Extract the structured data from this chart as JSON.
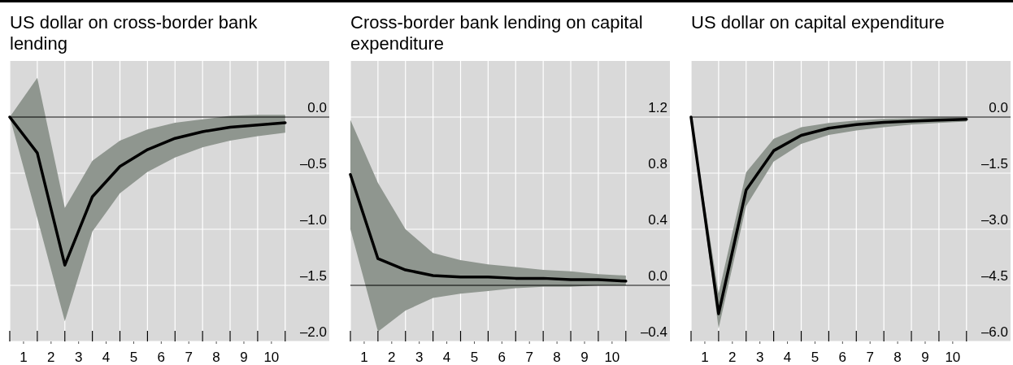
{
  "chart_data": [
    {
      "type": "line",
      "title": "US dollar on cross-border bank lending",
      "x": [
        0.5,
        1.5,
        2.5,
        3.5,
        4.5,
        5.5,
        6.5,
        7.5,
        8.5,
        9.5,
        10.5
      ],
      "series": [
        {
          "color": "#000000",
          "values": [
            0,
            -0.32,
            -1.32,
            -0.71,
            -0.44,
            -0.29,
            -0.19,
            -0.13,
            -0.09,
            -0.07,
            -0.05
          ],
          "upper": [
            0,
            0.35,
            -0.81,
            -0.39,
            -0.21,
            -0.11,
            -0.05,
            -0.02,
            0.01,
            0.02,
            0.02
          ],
          "lower": [
            0,
            -0.9,
            -1.82,
            -1.02,
            -0.68,
            -0.49,
            -0.36,
            -0.27,
            -0.21,
            -0.17,
            -0.14
          ]
        }
      ],
      "xlim": [
        0.5,
        12.1
      ],
      "xticks": [
        {
          "value": 0.5,
          "label": null
        },
        1,
        {
          "value": 1.5,
          "label": null
        },
        2,
        {
          "value": 2.5,
          "label": null
        },
        3,
        {
          "value": 3.5,
          "label": null
        },
        4,
        {
          "value": 4.5,
          "label": null
        },
        5,
        {
          "value": 5.5,
          "label": null
        },
        6,
        {
          "value": 6.5,
          "label": null
        },
        7,
        {
          "value": 7.5,
          "label": null
        },
        8,
        {
          "value": 8.5,
          "label": null
        },
        9,
        {
          "value": 9.5,
          "label": null
        },
        10,
        {
          "value": 10.5,
          "label": null
        }
      ],
      "ylim": [
        -2,
        0.5
      ],
      "yticks": [
        {
          "value": -2,
          "label": "–2.0"
        },
        {
          "value": -1.5,
          "label": "–1.5"
        },
        {
          "value": -1,
          "label": "–1.0"
        },
        {
          "value": -0.5,
          "label": "–0.5"
        },
        {
          "value": 0,
          "label": "0.0"
        }
      ],
      "grid": true,
      "ref_lines": [
        {
          "axis": "y",
          "value": 0,
          "color": "#000000"
        }
      ]
    },
    {
      "type": "line",
      "title": "Cross-border bank lending on capital expenditure",
      "x": [
        0.5,
        1.5,
        2.5,
        3.5,
        4.5,
        5.5,
        6.5,
        7.5,
        8.5,
        9.5,
        10.5
      ],
      "series": [
        {
          "color": "#000000",
          "values": [
            0.79,
            0.19,
            0.11,
            0.07,
            0.06,
            0.06,
            0.05,
            0.05,
            0.04,
            0.04,
            0.03
          ],
          "upper": [
            1.18,
            0.73,
            0.4,
            0.23,
            0.18,
            0.15,
            0.13,
            0.11,
            0.1,
            0.08,
            0.07
          ],
          "lower": [
            0.4,
            -0.33,
            -0.18,
            -0.09,
            -0.06,
            -0.04,
            -0.02,
            -0.01,
            -0.01,
            0,
            0
          ]
        }
      ],
      "xlim": [
        0.5,
        12.1
      ],
      "xticks": [
        {
          "value": 0.5,
          "label": null
        },
        1,
        {
          "value": 1.5,
          "label": null
        },
        2,
        {
          "value": 2.5,
          "label": null
        },
        3,
        {
          "value": 3.5,
          "label": null
        },
        4,
        {
          "value": 4.5,
          "label": null
        },
        5,
        {
          "value": 5.5,
          "label": null
        },
        6,
        {
          "value": 6.5,
          "label": null
        },
        7,
        {
          "value": 7.5,
          "label": null
        },
        8,
        {
          "value": 8.5,
          "label": null
        },
        9,
        {
          "value": 9.5,
          "label": null
        },
        10,
        {
          "value": 10.5,
          "label": null
        }
      ],
      "ylim": [
        -0.4,
        1.6
      ],
      "yticks": [
        {
          "value": -0.4,
          "label": "–0.4"
        },
        {
          "value": 0,
          "label": "0.0"
        },
        0.4,
        0.8,
        1.2
      ],
      "grid": true,
      "ref_lines": [
        {
          "axis": "y",
          "value": 0,
          "color": "#000000"
        }
      ]
    },
    {
      "type": "line",
      "title": "US dollar on capital expenditure",
      "x": [
        0.5,
        1.5,
        2.5,
        3.5,
        4.5,
        5.5,
        6.5,
        7.5,
        8.5,
        9.5,
        10.5
      ],
      "series": [
        {
          "color": "#000000",
          "values": [
            0,
            -5.26,
            -1.95,
            -0.9,
            -0.49,
            -0.3,
            -0.2,
            -0.14,
            -0.11,
            -0.08,
            -0.06
          ],
          "upper": [
            0,
            -4.72,
            -1.48,
            -0.58,
            -0.27,
            -0.16,
            -0.09,
            -0.05,
            -0.03,
            -0.01,
            -0.01
          ],
          "lower": [
            0,
            -5.66,
            -2.38,
            -1.19,
            -0.72,
            -0.48,
            -0.36,
            -0.27,
            -0.2,
            -0.16,
            -0.12
          ]
        }
      ],
      "xlim": [
        0.5,
        12.1
      ],
      "xticks": [
        {
          "value": 0.5,
          "label": null
        },
        1,
        {
          "value": 1.5,
          "label": null
        },
        2,
        {
          "value": 2.5,
          "label": null
        },
        3,
        {
          "value": 3.5,
          "label": null
        },
        4,
        {
          "value": 4.5,
          "label": null
        },
        5,
        {
          "value": 5.5,
          "label": null
        },
        6,
        {
          "value": 6.5,
          "label": null
        },
        7,
        {
          "value": 7.5,
          "label": null
        },
        8,
        {
          "value": 8.5,
          "label": null
        },
        9,
        {
          "value": 9.5,
          "label": null
        },
        10,
        {
          "value": 10.5,
          "label": null
        }
      ],
      "ylim": [
        -6,
        1.5
      ],
      "yticks": [
        {
          "value": -6,
          "label": "–6.0"
        },
        {
          "value": -4.5,
          "label": "–4.5"
        },
        {
          "value": -3,
          "label": "–3.0"
        },
        {
          "value": -1.5,
          "label": "–1.5"
        },
        {
          "value": 0,
          "label": "0.0"
        }
      ],
      "grid": true,
      "ref_lines": [
        {
          "axis": "y",
          "value": 0,
          "color": "#000000"
        }
      ]
    }
  ]
}
